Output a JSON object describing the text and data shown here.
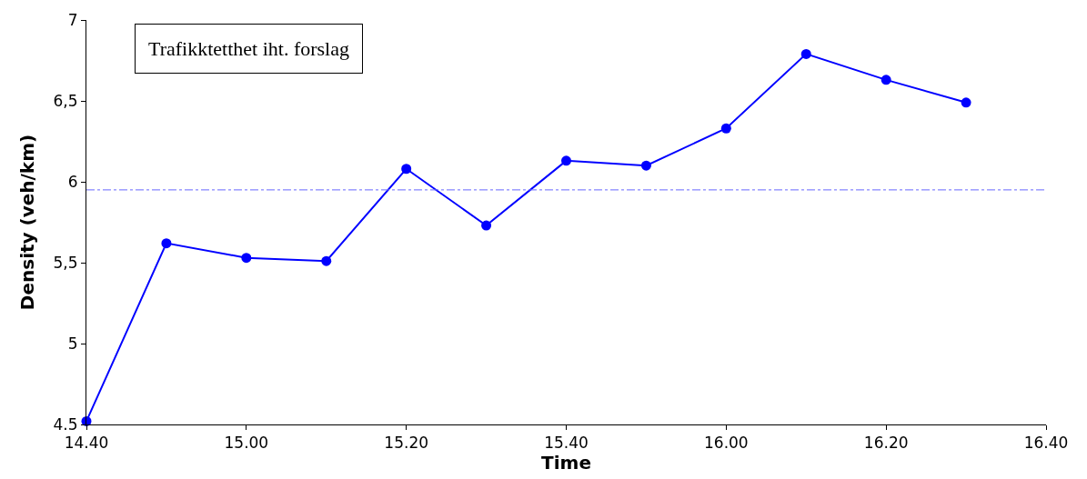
{
  "chart_data": {
    "type": "line",
    "xlabel": "Time",
    "ylabel": "Density (veh/km)",
    "annotations": [
      "Trafikktetthet iht. forslag"
    ],
    "categories": [
      "14.40",
      null,
      "15.00",
      null,
      "15.20",
      null,
      "15.40",
      null,
      "16.00",
      null,
      "16.20",
      null,
      "16.40"
    ],
    "series": [
      {
        "color": "#0000ff",
        "values": [
          4.52,
          5.62,
          5.53,
          5.51,
          6.08,
          5.73,
          6.13,
          6.1,
          6.33,
          6.79,
          6.63,
          6.49,
          null
        ]
      }
    ],
    "ylim": [
      4.5,
      7
    ],
    "yticks": [
      {
        "value": 4.5,
        "label": "4.5"
      },
      5,
      {
        "value": 5.5,
        "label": "5,5"
      },
      6,
      {
        "value": 6.5,
        "label": "6,5"
      },
      7
    ],
    "ref_lines": [
      {
        "axis": "y",
        "value": 5.95,
        "color": "#6666ff",
        "line_style": "dashdot"
      }
    ],
    "marker": "circle",
    "line_style": "solid",
    "legend": false
  }
}
